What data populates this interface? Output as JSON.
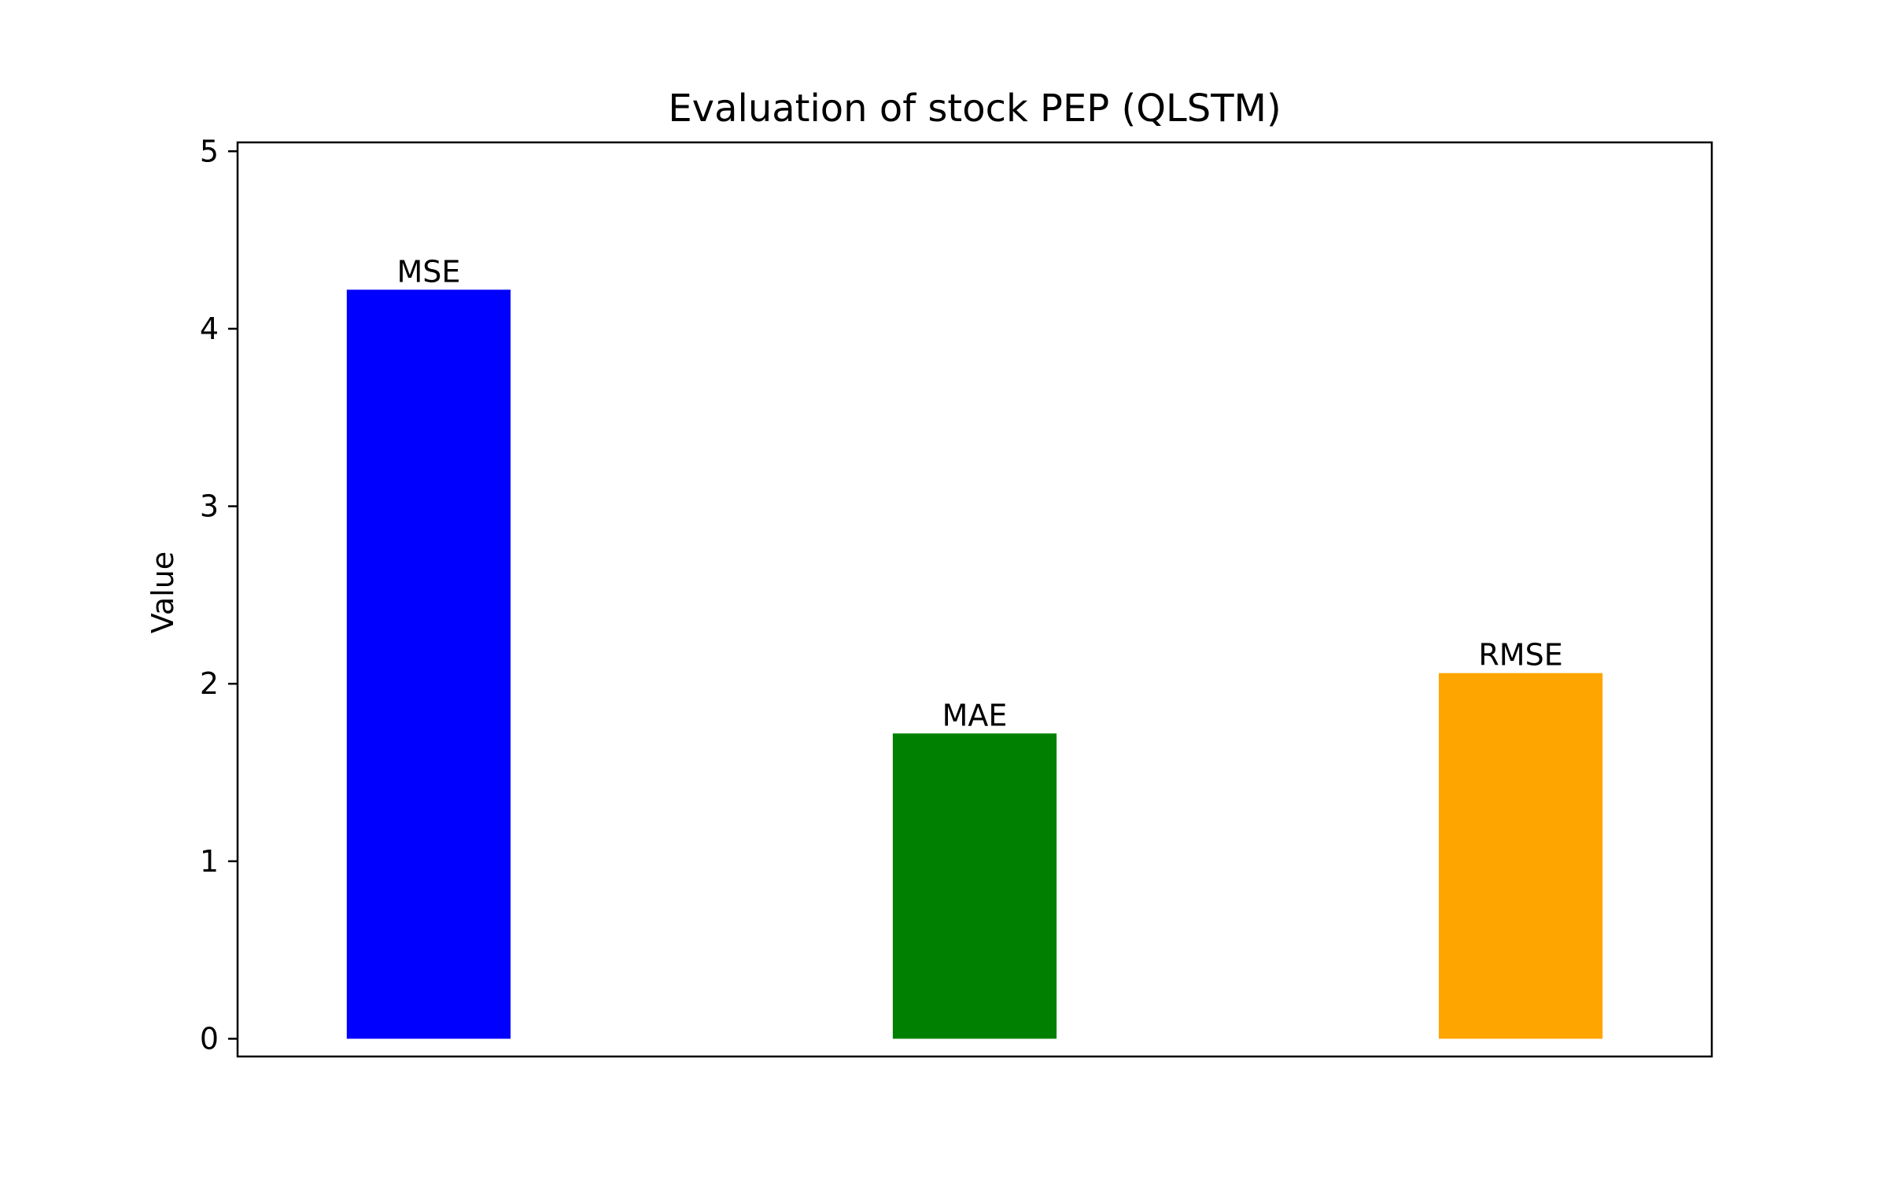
{
  "chart_data": {
    "type": "bar",
    "title": "Evaluation of stock PEP (QLSTM)",
    "xlabel": "",
    "ylabel": "Value",
    "categories": [
      "MSE",
      "MAE",
      "RMSE"
    ],
    "values": [
      4.22,
      1.72,
      2.06
    ],
    "colors": [
      "#0000ff",
      "#008000",
      "#ffa500"
    ],
    "bar_labels": [
      "MSE",
      "MAE",
      "RMSE"
    ],
    "yticks": [
      "0",
      "1",
      "2",
      "3",
      "4",
      "5"
    ],
    "ylim": [
      -0.1,
      5.05
    ],
    "grid": false,
    "xticks_visible": false
  }
}
